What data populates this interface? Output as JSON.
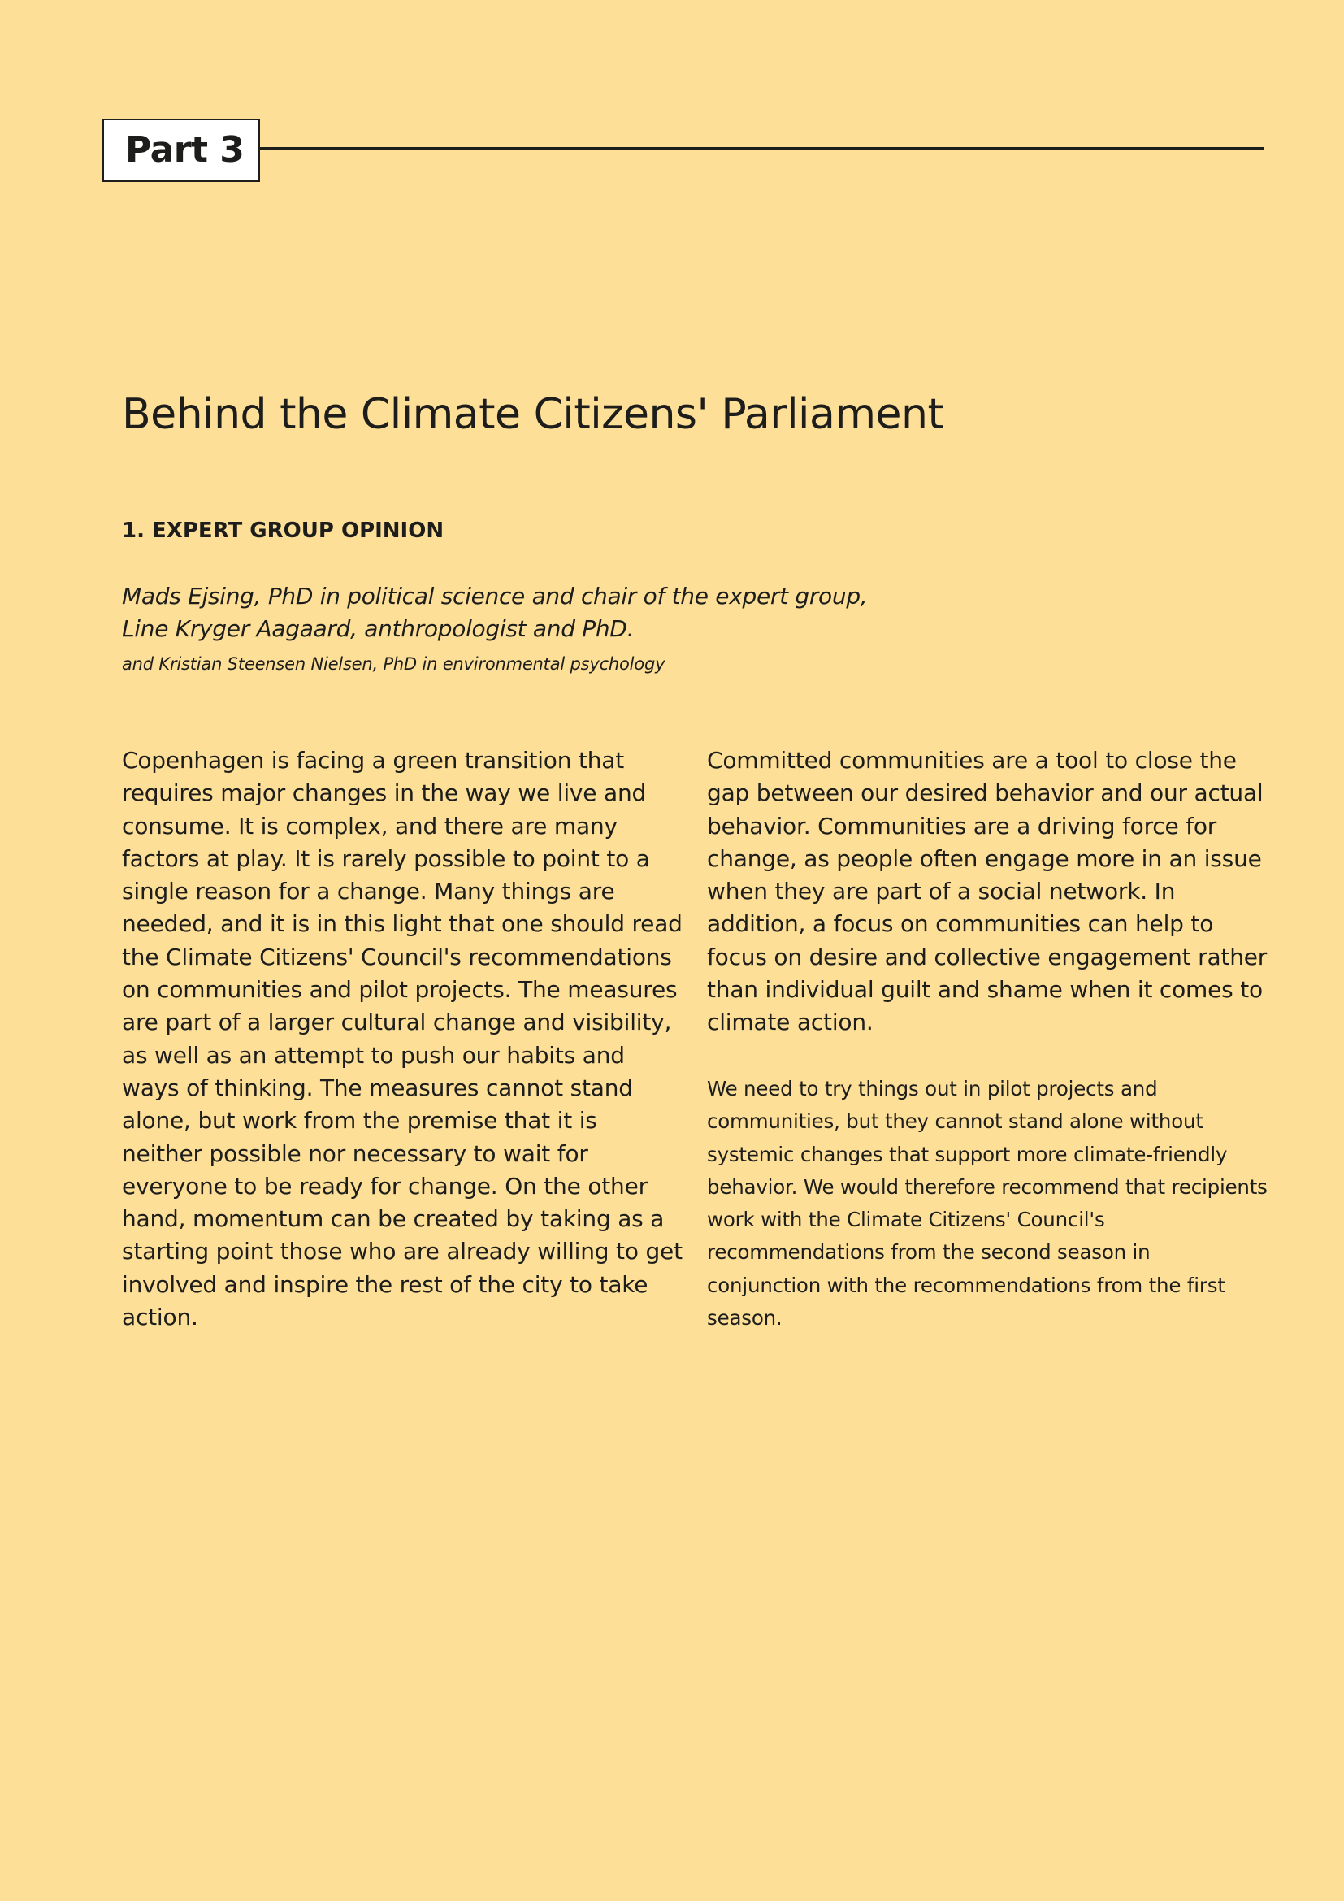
{
  "part": {
    "label": "Part 3"
  },
  "page": {
    "title": "Behind the Climate Citizens' Parliament",
    "section_heading": "1. EXPERT GROUP OPINION",
    "authors": "Mads Ejsing, PhD in political science and chair of the expert group, Line Kryger Aagaard, anthropologist and PhD.",
    "authors_extra": "and Kristian Steensen Nielsen, PhD in environmental psychology"
  },
  "body": {
    "left_column": "Copenhagen is facing a green transition that requires major changes in the way we live and consume. It is complex, and there are many factors at play. It is rarely possible to point to a single reason for a change. Many things are needed, and it is in this light that one should read the Climate Citizens' Council's recommendations on communities and pilot projects. The measures are part of a larger cultural change and visibility, as well as an attempt to push our habits and ways of thinking. The measures cannot stand alone, but work from the premise that it is neither possible nor necessary to wait for everyone to be ready for change. On the other hand, momentum can be created by taking as a starting point those who are already willing to get involved and inspire the rest of the city to take action.",
    "right_column_top": "Committed communities are a tool to close the gap between our desired behavior and our actual behavior. Communities are a driving force for change, as people often engage more in an issue when they are part of a social network. In addition, a focus on communities can help to focus on desire and collective engagement rather than individual guilt and shame when it comes to climate action.",
    "right_column_bottom": "We need to try things out in pilot projects and communities, but they cannot stand alone without systemic changes that support more climate-friendly behavior. We would therefore recommend that recipients work with the Climate Citizens' Council's recommendations from the second season in conjunction with the recommendations from the first season."
  },
  "colors": {
    "background": "#FDDF97",
    "text": "#1d1d1b",
    "part_box_fill": "#ffffff"
  }
}
